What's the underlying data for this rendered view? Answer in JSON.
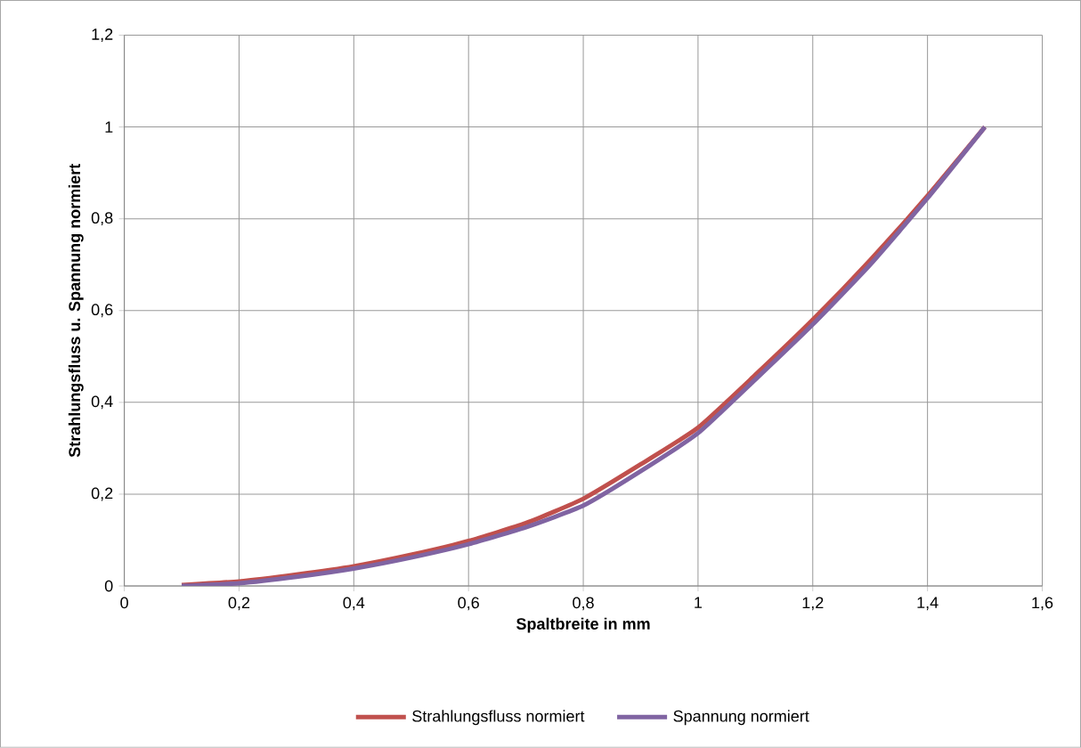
{
  "chart_data": {
    "type": "line",
    "xlabel": "Spaltbreite in mm",
    "ylabel": "Strahlungsfluss u. Spannung normiert",
    "x": [
      0.1,
      0.2,
      0.3,
      0.4,
      0.5,
      0.6,
      0.7,
      0.8,
      0.9,
      1.0,
      1.1,
      1.2,
      1.3,
      1.4,
      1.5
    ],
    "series": [
      {
        "name": "Strahlungsfluss normiert",
        "color": "#c0504d",
        "values": [
          0.002,
          0.01,
          0.025,
          0.043,
          0.068,
          0.098,
          0.137,
          0.19,
          0.265,
          0.345,
          0.46,
          0.58,
          0.71,
          0.85,
          1.0
        ]
      },
      {
        "name": "Spannung normiert",
        "color": "#8064a2",
        "values": [
          0,
          0.006,
          0.02,
          0.038,
          0.062,
          0.091,
          0.128,
          0.175,
          0.25,
          0.333,
          0.45,
          0.57,
          0.7,
          0.845,
          1.0
        ]
      }
    ],
    "xlim": [
      0,
      1.6
    ],
    "ylim": [
      0,
      1.2
    ],
    "xticks": [
      0,
      {
        "value": 0.2,
        "label": "0,2"
      },
      {
        "value": 0.4,
        "label": "0,4"
      },
      {
        "value": 0.6,
        "label": "0,6"
      },
      {
        "value": 0.8,
        "label": "0,8"
      },
      1,
      {
        "value": 1.2,
        "label": "1,2"
      },
      {
        "value": 1.4,
        "label": "1,4"
      },
      {
        "value": 1.6,
        "label": "1,6"
      }
    ],
    "yticks": [
      0,
      {
        "value": 0.2,
        "label": "0,2"
      },
      {
        "value": 0.4,
        "label": "0,4"
      },
      {
        "value": 0.6,
        "label": "0,6"
      },
      {
        "value": 0.8,
        "label": "0,8"
      },
      1,
      {
        "value": 1.2,
        "label": "1,2"
      }
    ],
    "grid": true,
    "legend": "bottom",
    "marker": "none",
    "line_style": "solid"
  }
}
